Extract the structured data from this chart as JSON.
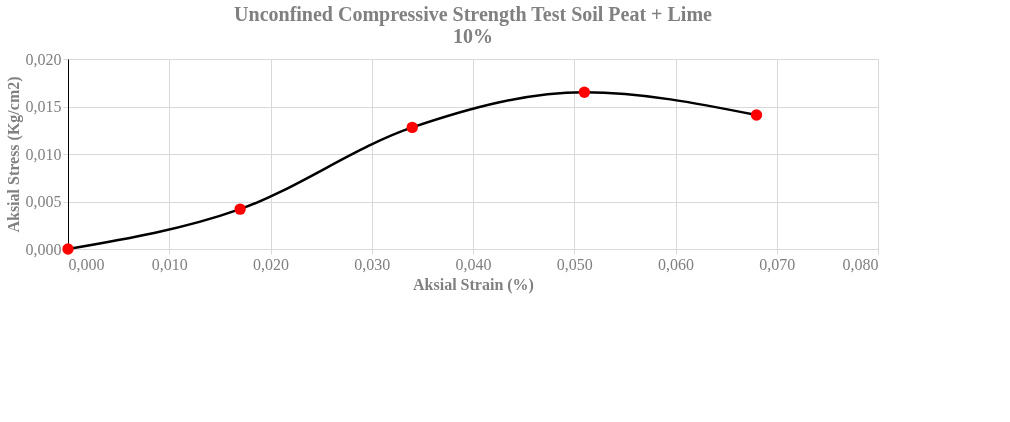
{
  "chart_data": {
    "type": "line",
    "title": [
      "Unconfined Compressive Strength Test Soil Peat + Lime",
      "10%"
    ],
    "xlabel": "Aksial Strain (%)",
    "ylabel": "Aksial Stress  (Kg/cm2)",
    "x": [
      0,
      0.017,
      0.034,
      0.051,
      0.068
    ],
    "series": [
      {
        "color": "#000000",
        "values": [
          0,
          0.0042,
          0.0128,
          0.0165,
          0.0141
        ],
        "marker": "none",
        "line_style": "solid"
      },
      {
        "type": "scatter",
        "color": "#ff0000",
        "values": [
          0,
          0.0042,
          0.0128,
          0.0165,
          0.0141
        ],
        "marker": "circle"
      }
    ],
    "grid": true,
    "xlim": [
      0,
      0.08
    ],
    "xticks": [
      {
        "value": 0,
        "label": "0,000"
      },
      {
        "value": 0.01,
        "label": "0,010"
      },
      {
        "value": 0.02,
        "label": "0,020"
      },
      {
        "value": 0.03,
        "label": "0,030"
      },
      {
        "value": 0.04,
        "label": "0,040"
      },
      {
        "value": 0.05,
        "label": "0,050"
      },
      {
        "value": 0.06,
        "label": "0,060"
      },
      {
        "value": 0.07,
        "label": "0,070"
      },
      {
        "value": 0.08,
        "label": "0,080"
      }
    ],
    "ylim": [
      0,
      0.02
    ],
    "yticks": [
      {
        "value": 0,
        "label": "0,000"
      },
      {
        "value": 0.005,
        "label": "0,005"
      },
      {
        "value": 0.01,
        "label": "0,010"
      },
      {
        "value": 0.015,
        "label": "0,015"
      },
      {
        "value": 0.02,
        "label": "0,020"
      }
    ]
  }
}
